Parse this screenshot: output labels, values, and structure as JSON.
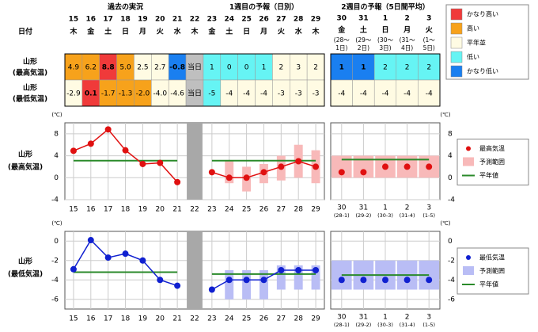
{
  "table": {
    "headers": [
      "過去の実況",
      "1週目の予報（日別）",
      "2週目の予報（5日間平均）"
    ],
    "date_label": "日付",
    "days": [
      "15",
      "16",
      "17",
      "18",
      "19",
      "20",
      "21",
      "22",
      "23",
      "24",
      "25",
      "26",
      "27",
      "28",
      "29"
    ],
    "weekdays": [
      "木",
      "金",
      "土",
      "日",
      "月",
      "火",
      "水",
      "木",
      "金",
      "土",
      "日",
      "月",
      "火",
      "水",
      "木"
    ],
    "week2_days": [
      "30",
      "31",
      "1",
      "2",
      "3"
    ],
    "week2_weekdays": [
      "金",
      "土",
      "日",
      "月",
      "火"
    ],
    "week2_ranges": [
      [
        "(28〜",
        "1日)"
      ],
      [
        "(29〜",
        "2日)"
      ],
      [
        "(30〜",
        "3日)"
      ],
      [
        "(31〜",
        "4日)"
      ],
      [
        "(1〜",
        "5日)"
      ]
    ],
    "rows": [
      {
        "label": [
          "山形",
          "(最高気温)"
        ],
        "cells": [
          "4.9",
          "6.2",
          "8.8",
          "5.0",
          "2.5",
          "2.7",
          "-0.8",
          "当日",
          "1",
          "0",
          "0",
          "1",
          "2",
          "3",
          "2"
        ],
        "levels": [
          1,
          1,
          0,
          1,
          2,
          2,
          4,
          null,
          3,
          3,
          3,
          3,
          2,
          2,
          2
        ],
        "week2_cells": [
          "1",
          "1",
          "2",
          "2",
          "2"
        ],
        "week2_levels": [
          4,
          4,
          3,
          3,
          3
        ]
      },
      {
        "label": [
          "山形",
          "(最低気温)"
        ],
        "cells": [
          "-2.9",
          "0.1",
          "-1.7",
          "-1.3",
          "-2.0",
          "-4.0",
          "-4.6",
          "当日",
          "-5",
          "-4",
          "-4",
          "-4",
          "-3",
          "-3",
          "-3"
        ],
        "levels": [
          2,
          0,
          1,
          1,
          1,
          2,
          2,
          null,
          3,
          2,
          2,
          2,
          2,
          2,
          2
        ],
        "week2_cells": [
          "-4",
          "-4",
          "-4",
          "-4",
          "-4"
        ],
        "week2_levels": [
          2,
          2,
          2,
          2,
          2
        ]
      }
    ],
    "legend": [
      {
        "label": "かなり高い",
        "color": "#f03a3a"
      },
      {
        "label": "高い",
        "color": "#f7a21b"
      },
      {
        "label": "平年並",
        "color": "#fffbe3"
      },
      {
        "label": "低い",
        "color": "#66f4f4"
      },
      {
        "label": "かなり低い",
        "color": "#1a7ff0"
      }
    ]
  },
  "chart_data": [
    {
      "type": "line",
      "label": [
        "山形",
        "(最高気温)"
      ],
      "unit": "(℃)",
      "ylim": [
        -4,
        10
      ],
      "yticks": [
        -4,
        0,
        4,
        8
      ],
      "grid": true,
      "categories": [
        "15",
        "16",
        "17",
        "18",
        "19",
        "20",
        "21",
        "22",
        "23",
        "24",
        "25",
        "26",
        "27",
        "28",
        "29"
      ],
      "week2_categories": [
        "30",
        "31",
        "1",
        "2",
        "3"
      ],
      "week2_sub_labels": [
        "(28-1)",
        "(29-2)",
        "(30-3)",
        "(31-4)",
        "(1-5)"
      ],
      "series": [
        {
          "name": "最高気温",
          "color": "#e01010",
          "values": [
            4.9,
            6.2,
            8.8,
            5.0,
            2.5,
            2.7,
            -0.8,
            null,
            1,
            0,
            0,
            1,
            2,
            3,
            2
          ],
          "week2_values": [
            1,
            1,
            2,
            2,
            2
          ]
        },
        {
          "name": "予測範囲",
          "color": "#f8b9b9",
          "low": [
            null,
            null,
            null,
            null,
            null,
            null,
            null,
            null,
            null,
            -1,
            -2.5,
            -1,
            -0.5,
            0,
            -1
          ],
          "high": [
            null,
            null,
            null,
            null,
            null,
            null,
            null,
            null,
            null,
            3,
            2,
            2.5,
            4,
            6,
            5
          ],
          "week2_low": [
            0,
            0,
            0,
            0,
            0
          ],
          "week2_high": [
            4,
            4,
            4,
            4,
            4
          ]
        },
        {
          "name": "平年値",
          "color": "#2a8a2a",
          "values": [
            3.1,
            3.1,
            3.1,
            3.1,
            3.1,
            3.1,
            3.1,
            null,
            3.1,
            3.1,
            3.1,
            3.1,
            3.1,
            3.1,
            3.1
          ],
          "week2_values": [
            3.3,
            3.3,
            3.3,
            3.3,
            3.3
          ]
        }
      ]
    },
    {
      "type": "line",
      "label": [
        "山形",
        "(最低気温)"
      ],
      "unit": "(℃)",
      "ylim": [
        -7,
        1
      ],
      "yticks": [
        -6,
        -4,
        -2,
        0
      ],
      "grid": true,
      "categories": [
        "15",
        "16",
        "17",
        "18",
        "19",
        "20",
        "21",
        "22",
        "23",
        "24",
        "25",
        "26",
        "27",
        "28",
        "29"
      ],
      "week2_categories": [
        "30",
        "31",
        "1",
        "2",
        "3"
      ],
      "week2_sub_labels": [
        "(28-1)",
        "(29-2)",
        "(30-3)",
        "(31-4)",
        "(1-5)"
      ],
      "series": [
        {
          "name": "最低気温",
          "color": "#1020d0",
          "values": [
            -2.9,
            0.1,
            -1.7,
            -1.3,
            -2.0,
            -4.0,
            -4.6,
            null,
            -5,
            -4,
            -4,
            -4,
            -3,
            -3,
            -3
          ],
          "week2_values": [
            -4,
            -4,
            -4,
            -4,
            -4
          ]
        },
        {
          "name": "予測範囲",
          "color": "#b9bdf5",
          "low": [
            null,
            null,
            null,
            null,
            null,
            null,
            null,
            null,
            null,
            -6,
            -6,
            -6,
            -5,
            -5,
            -5
          ],
          "high": [
            null,
            null,
            null,
            null,
            null,
            null,
            null,
            null,
            null,
            -3,
            -3,
            -3,
            -2.5,
            -2.5,
            -2.5
          ],
          "week2_low": [
            -5,
            -5,
            -5,
            -5,
            -5
          ],
          "week2_high": [
            -2,
            -2,
            -2,
            -2,
            -2
          ]
        },
        {
          "name": "平年値",
          "color": "#2a8a2a",
          "values": [
            -3.2,
            -3.2,
            -3.2,
            -3.2,
            -3.2,
            -3.2,
            -3.2,
            null,
            -3.4,
            -3.4,
            -3.4,
            -3.4,
            -3.4,
            -3.4,
            -3.4
          ],
          "week2_values": [
            -3.5,
            -3.5,
            -3.5,
            -3.5,
            -3.5
          ]
        }
      ]
    }
  ]
}
